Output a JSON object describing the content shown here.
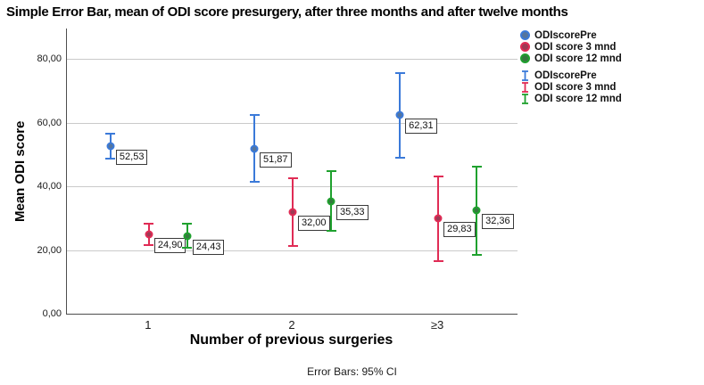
{
  "chart_data": {
    "type": "errorbar",
    "title": "Simple Error Bar, mean of ODI score presurgery, after three months and after twelve months",
    "xlabel": "Number of previous surgeries",
    "ylabel": "Mean ODI score",
    "footnote": "Error Bars: 95% CI",
    "categories": [
      "1",
      "2",
      "≥3"
    ],
    "ylim": [
      0,
      89
    ],
    "grid": "horizontal",
    "legend_position": "right",
    "yticks": [
      {
        "value": 0,
        "label": "0,00"
      },
      {
        "value": 20,
        "label": "20,00"
      },
      {
        "value": 40,
        "label": "40,00"
      },
      {
        "value": 60,
        "label": "60,00"
      },
      {
        "value": 80,
        "label": "80,00"
      }
    ],
    "series": [
      {
        "name": "ODIscorePre",
        "marker_fill": "#55759E",
        "stroke": "#3B7AD9",
        "means": [
          52.53,
          51.87,
          62.31
        ],
        "labels": [
          "52,53",
          "51,87",
          "62,31"
        ],
        "ci_low": [
          48.3,
          41.1,
          48.7
        ],
        "ci_high": [
          56.7,
          62.7,
          75.9
        ]
      },
      {
        "name": "ODI score 3 mnd",
        "marker_fill": "#9E3A55",
        "stroke": "#E02C55",
        "means": [
          24.9,
          32.0,
          29.83
        ],
        "labels": [
          "24,90",
          "32,00",
          "29,83"
        ],
        "ci_low": [
          21.2,
          21.1,
          16.3
        ],
        "ci_high": [
          28.6,
          42.9,
          43.4
        ]
      },
      {
        "name": "ODI score 12 mnd",
        "marker_fill": "#35793E",
        "stroke": "#1FA12E",
        "means": [
          24.43,
          35.33,
          32.36
        ],
        "labels": [
          "24,43",
          "35,33",
          "32,36"
        ],
        "ci_low": [
          20.5,
          25.7,
          18.2
        ],
        "ci_high": [
          28.4,
          45.0,
          46.5
        ]
      }
    ],
    "legend": {
      "marker_items": [
        "ODIscorePre",
        "ODI score 3 mnd",
        "ODI score 12 mnd"
      ],
      "errorbar_items": [
        "ODIscorePre",
        "ODI score 3 mnd",
        "ODI score 12 mnd"
      ]
    },
    "colors": {
      "gridline": "#cacaca",
      "axis": "#4d4d4d",
      "label_box_border": "#3a3a3a"
    }
  }
}
